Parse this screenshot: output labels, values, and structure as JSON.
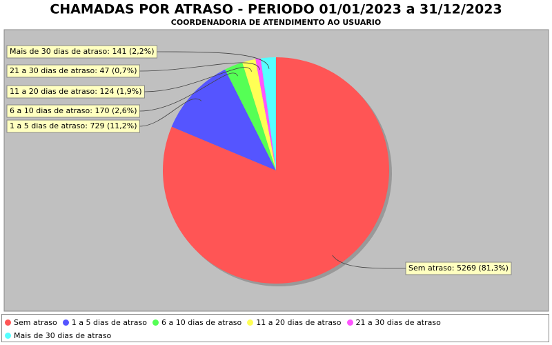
{
  "chart_data": {
    "type": "pie",
    "title": "CHAMADAS POR ATRASO - PERIODO 01/01/2023 a 31/12/2023",
    "subtitle": "COORDENADORIA DE ATENDIMENTO AO USUARIO",
    "categories": [
      "Sem atraso",
      "1 a 5 dias de atraso",
      "6 a 10 dias de atraso",
      "11 a 20 dias de atraso",
      "21 a 30 dias de atraso",
      "Mais de 30 dias de atraso"
    ],
    "values": [
      5269,
      729,
      170,
      124,
      47,
      141
    ],
    "value_labels": [
      "Sem atraso: 5269 (81,3%)",
      "1 a 5 dias de atraso: 729 (11,2%)",
      "6 a 10 dias de atraso: 170 (2,6%)",
      "11 a 20 dias de atraso: 124 (1,9%)",
      "21 a 30 dias de atraso: 47 (0,7%)",
      "Mais de 30 dias de atraso: 141 (2,2%)"
    ],
    "colors": [
      "#ff5555",
      "#5555ff",
      "#55ff55",
      "#ffff55",
      "#ff55ff",
      "#55ffff"
    ],
    "legend": "bottom"
  }
}
